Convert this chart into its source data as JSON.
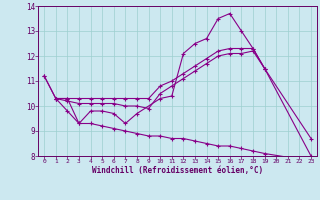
{
  "xlabel": "Windchill (Refroidissement éolien,°C)",
  "bg_color": "#cce8f0",
  "line_color": "#880088",
  "xlim": [
    -0.5,
    23.5
  ],
  "ylim": [
    8,
    14
  ],
  "yticks": [
    8,
    9,
    10,
    11,
    12,
    13,
    14
  ],
  "xticks": [
    0,
    1,
    2,
    3,
    4,
    5,
    6,
    7,
    8,
    9,
    10,
    11,
    12,
    13,
    14,
    15,
    16,
    17,
    18,
    19,
    20,
    21,
    22,
    23
  ],
  "series": [
    {
      "x": [
        0,
        1,
        2,
        3,
        4,
        5,
        6,
        7,
        8,
        10,
        11,
        12,
        13,
        14,
        15,
        16,
        17,
        18,
        19
      ],
      "y": [
        11.2,
        10.3,
        9.8,
        9.3,
        9.8,
        9.8,
        9.7,
        9.3,
        9.7,
        10.3,
        10.4,
        12.1,
        12.5,
        12.7,
        13.5,
        13.7,
        13.0,
        12.3,
        11.5
      ]
    },
    {
      "x": [
        0,
        1,
        2,
        3,
        4,
        5,
        6,
        7,
        8,
        9,
        10,
        11,
        12,
        13,
        14,
        15,
        16,
        17,
        18,
        19,
        23
      ],
      "y": [
        11.2,
        10.3,
        10.3,
        10.3,
        10.3,
        10.3,
        10.3,
        10.3,
        10.3,
        10.3,
        10.8,
        11.0,
        11.3,
        11.6,
        11.9,
        12.2,
        12.3,
        12.3,
        12.3,
        11.5,
        8.7
      ]
    },
    {
      "x": [
        1,
        2,
        3,
        4,
        5,
        6,
        7,
        8,
        9,
        10,
        11,
        12,
        13,
        14,
        15,
        16,
        17,
        18,
        19,
        23
      ],
      "y": [
        10.3,
        10.2,
        10.1,
        10.1,
        10.1,
        10.1,
        10.0,
        10.0,
        9.9,
        10.5,
        10.8,
        11.1,
        11.4,
        11.7,
        12.0,
        12.1,
        12.1,
        12.2,
        11.5,
        8.0
      ]
    },
    {
      "x": [
        1,
        2,
        3,
        4,
        5,
        6,
        7,
        8,
        9,
        10,
        11,
        12,
        13,
        14,
        15,
        16,
        17,
        18,
        19,
        23
      ],
      "y": [
        10.3,
        10.3,
        9.3,
        9.3,
        9.2,
        9.1,
        9.0,
        8.9,
        8.8,
        8.8,
        8.7,
        8.7,
        8.6,
        8.5,
        8.4,
        8.4,
        8.3,
        8.2,
        8.1,
        7.8
      ]
    }
  ]
}
